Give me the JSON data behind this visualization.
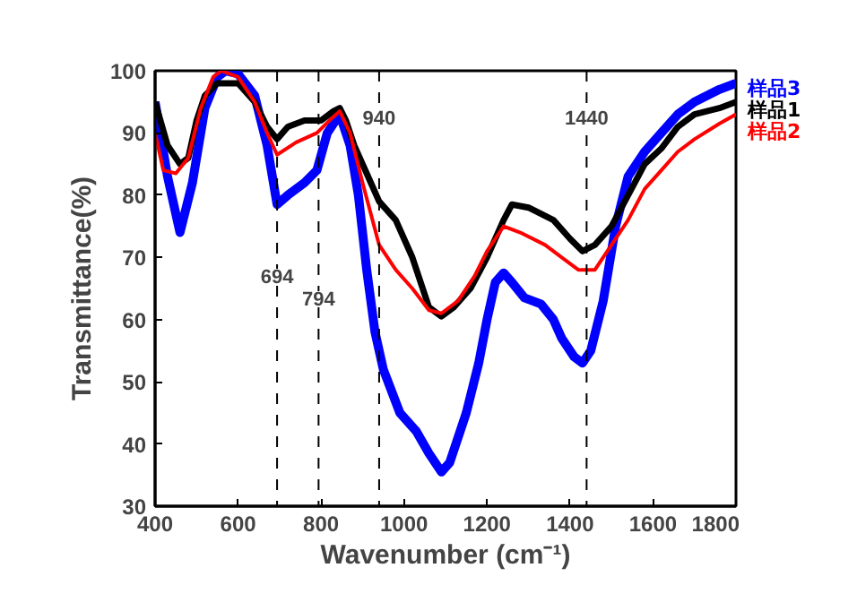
{
  "chart_data": {
    "type": "line",
    "xlabel": "Wavenumber (cm⁻¹)",
    "ylabel": "Transmittance(%)",
    "xlim": [
      400,
      1800
    ],
    "ylim": [
      30,
      100
    ],
    "xticks": [
      400,
      600,
      800,
      1000,
      1200,
      1400,
      1600,
      1800
    ],
    "yticks": [
      30,
      40,
      50,
      60,
      70,
      80,
      90,
      100
    ],
    "grid": false,
    "marker": "none",
    "line_style": "solid",
    "series": [
      {
        "name": "样品3",
        "color": "#0000ff",
        "x": [
          400,
          430,
          460,
          490,
          520,
          550,
          570,
          600,
          640,
          670,
          694,
          720,
          760,
          790,
          815,
          845,
          870,
          890,
          910,
          930,
          950,
          990,
          1030,
          1060,
          1090,
          1110,
          1150,
          1180,
          1200,
          1220,
          1240,
          1260,
          1290,
          1330,
          1360,
          1380,
          1410,
          1430,
          1450,
          1480,
          1510,
          1540,
          1580,
          1620,
          1660,
          1700,
          1760,
          1800
        ],
        "values": [
          95,
          83,
          74,
          82,
          94,
          99,
          100,
          99.5,
          96,
          88,
          78.5,
          80,
          82,
          84,
          90,
          93,
          88,
          80,
          68,
          58,
          52,
          45,
          42,
          38.5,
          35.5,
          37,
          45,
          53,
          60,
          66,
          67.5,
          66,
          63.5,
          62.5,
          60,
          57,
          54,
          53,
          55,
          63,
          75,
          83,
          87,
          90,
          93,
          95,
          97,
          98
        ]
      },
      {
        "name": "样品1",
        "color": "#000000",
        "x": [
          400,
          430,
          460,
          480,
          500,
          520,
          550,
          600,
          640,
          670,
          694,
          720,
          760,
          800,
          830,
          845,
          860,
          880,
          920,
          940,
          980,
          1020,
          1060,
          1090,
          1120,
          1160,
          1200,
          1240,
          1260,
          1300,
          1360,
          1400,
          1430,
          1460,
          1500,
          1540,
          1580,
          1620,
          1660,
          1700,
          1760,
          1800
        ],
        "values": [
          95,
          88,
          85,
          86,
          92,
          96,
          98,
          98,
          95,
          91,
          89,
          91,
          92,
          92,
          93.5,
          94,
          92,
          88,
          82,
          79,
          76,
          70,
          62,
          60.5,
          62,
          65,
          70,
          76,
          78.5,
          78,
          76,
          73,
          71,
          72,
          75,
          80,
          85,
          87.5,
          91,
          93,
          94,
          95
        ]
      },
      {
        "name": "样品2",
        "color": "#ff0000",
        "x": [
          400,
          420,
          450,
          480,
          510,
          540,
          560,
          600,
          640,
          670,
          694,
          740,
          790,
          820,
          845,
          870,
          900,
          940,
          980,
          1020,
          1060,
          1090,
          1130,
          1170,
          1200,
          1240,
          1280,
          1340,
          1380,
          1420,
          1460,
          1500,
          1540,
          1580,
          1620,
          1660,
          1700,
          1760,
          1800
        ],
        "values": [
          90,
          84,
          83.5,
          86,
          94,
          99,
          100,
          99,
          95,
          90,
          86.5,
          88.5,
          90,
          92,
          93.5,
          90,
          82,
          72,
          68,
          65,
          61.5,
          61,
          63,
          67,
          71,
          75,
          74,
          72,
          70,
          68,
          68,
          72,
          76,
          81,
          84,
          87,
          89,
          91.5,
          93
        ]
      }
    ],
    "ref_lines": [
      {
        "axis": "x",
        "value": 694,
        "color": "#000000",
        "line_style": "dashed"
      },
      {
        "axis": "x",
        "value": 794,
        "color": "#000000",
        "line_style": "dashed"
      },
      {
        "axis": "x",
        "value": 940,
        "color": "#000000",
        "line_style": "dashed"
      },
      {
        "axis": "x",
        "value": 1440,
        "color": "#000000",
        "line_style": "dashed"
      }
    ],
    "annotations": [
      {
        "text": "694",
        "x": 694,
        "y": 67
      },
      {
        "text": "794",
        "x": 794,
        "y": 63.4
      },
      {
        "text": "940",
        "x": 940,
        "y": 92.5
      },
      {
        "text": "1440",
        "x": 1440,
        "y": 92.5
      }
    ]
  }
}
